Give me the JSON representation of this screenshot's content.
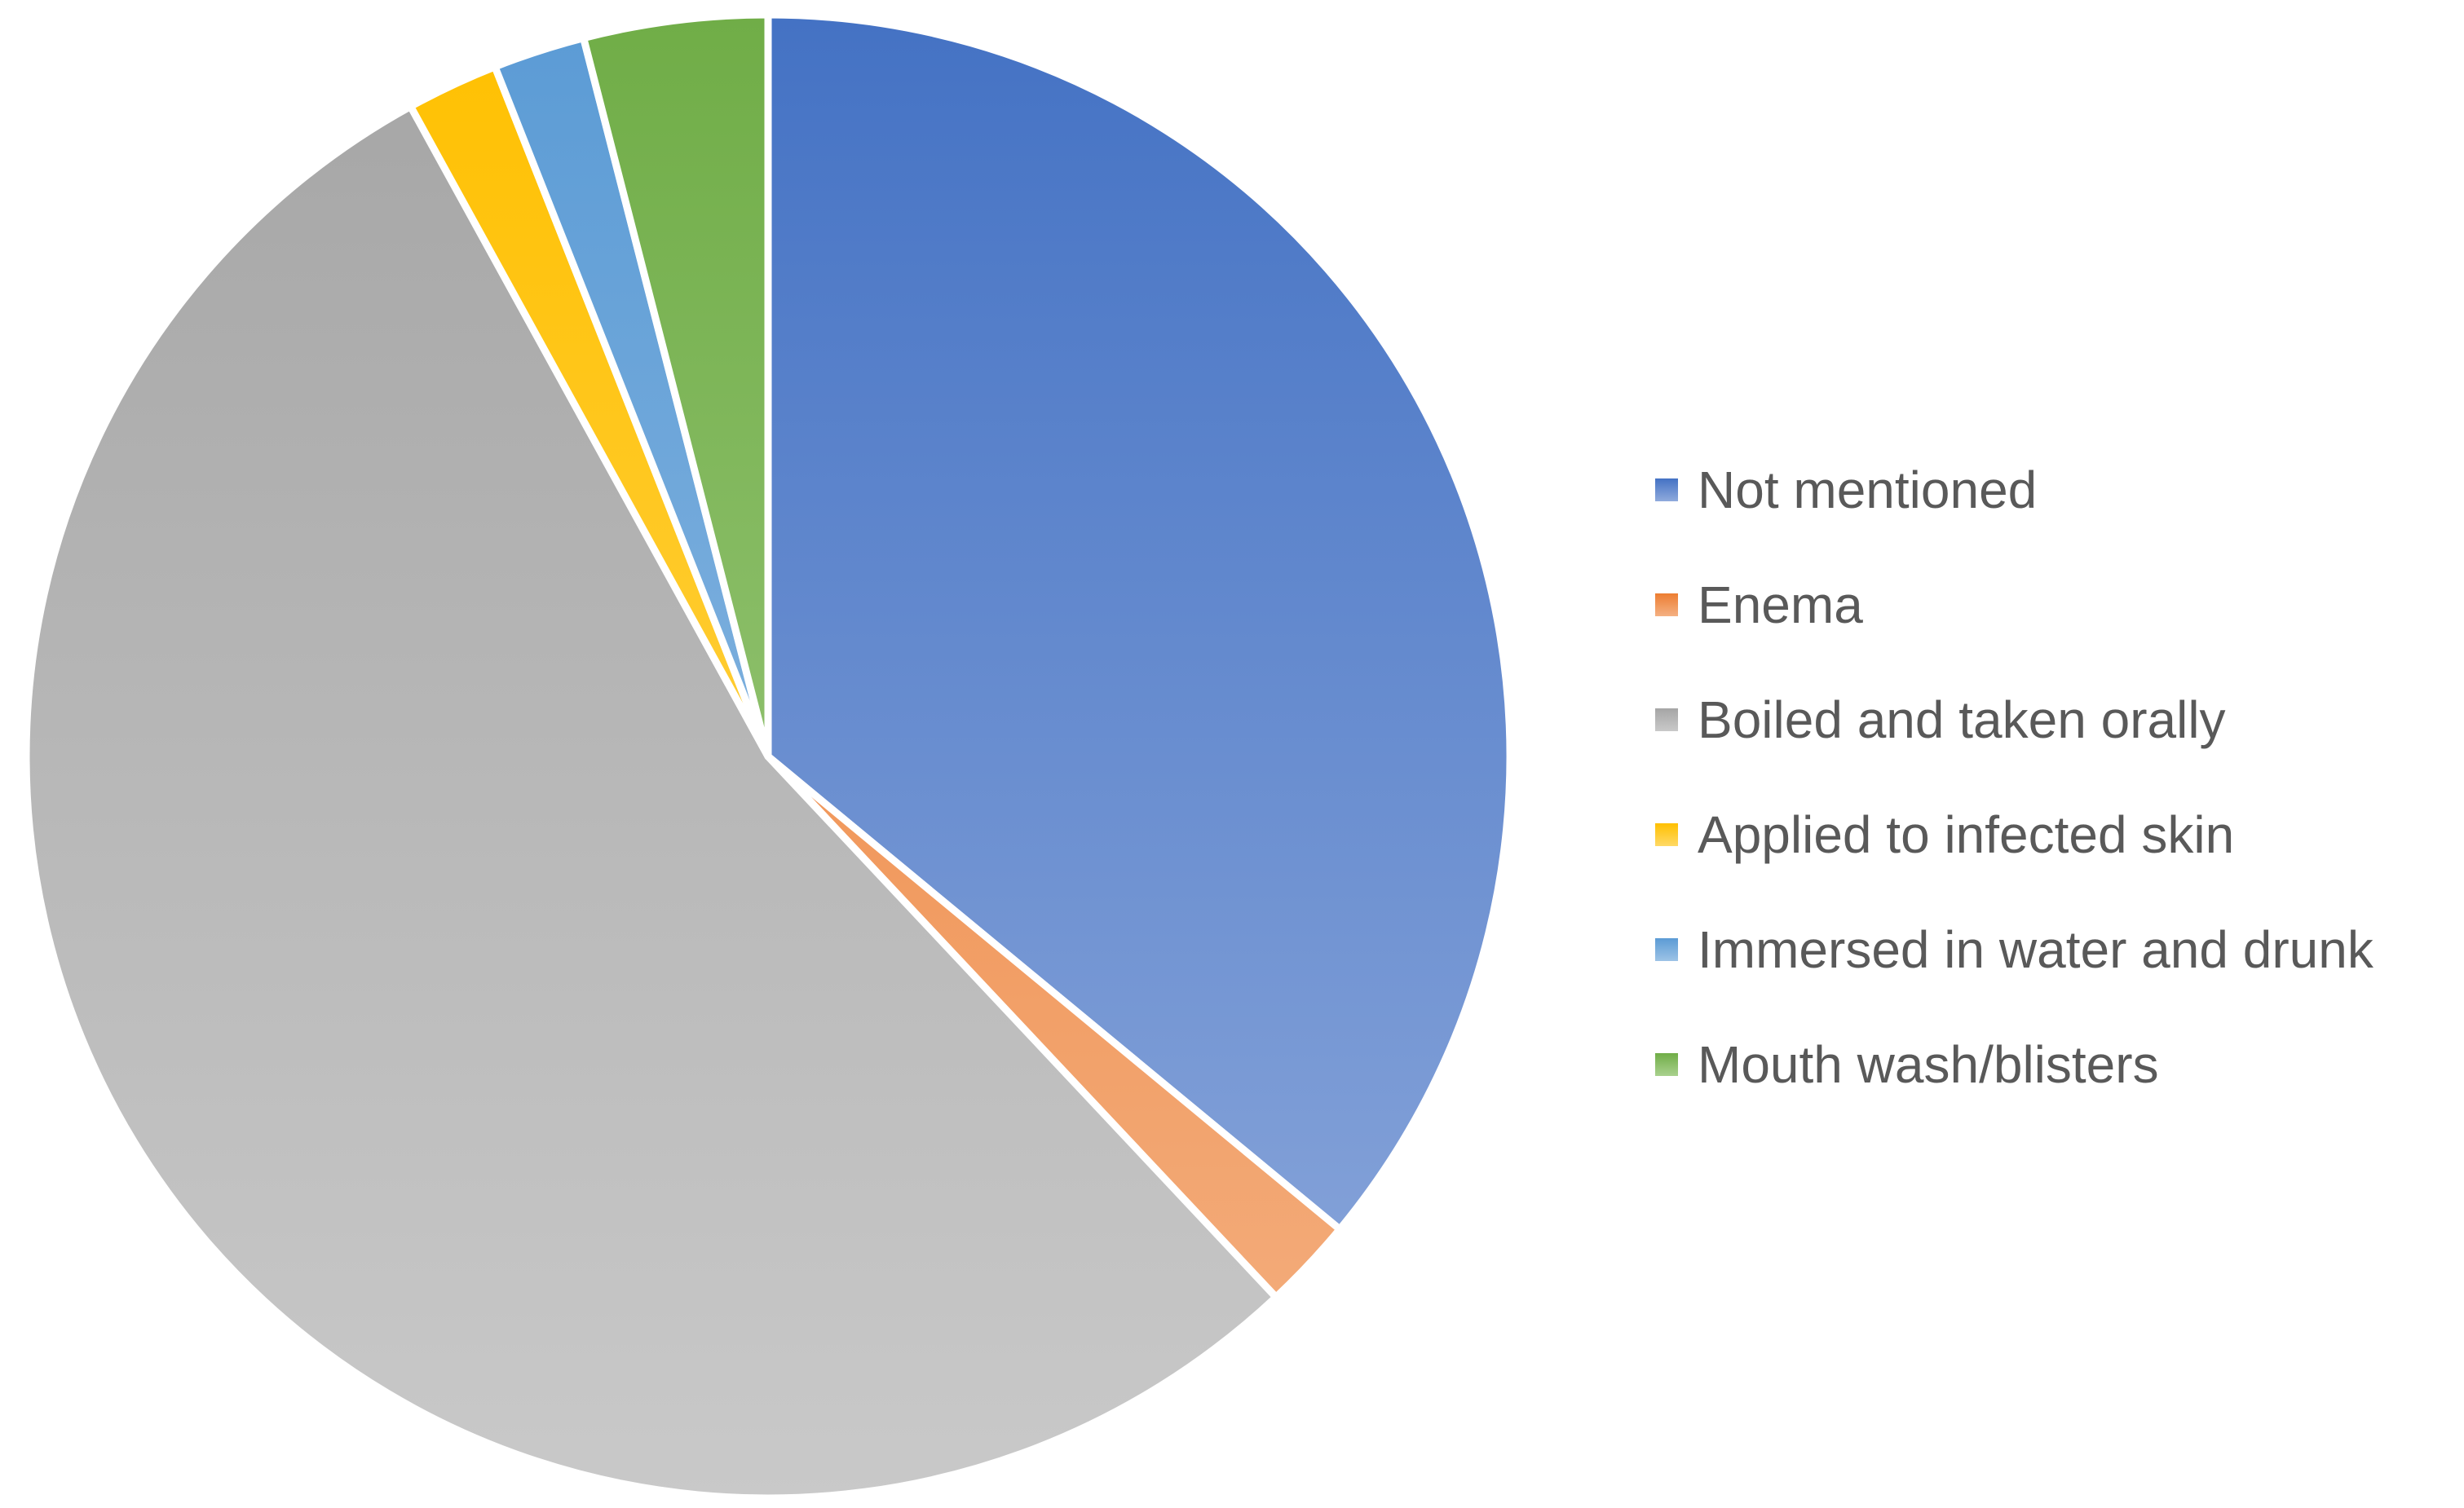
{
  "chart_data": {
    "type": "pie",
    "title": "",
    "legend_position": "right",
    "slices": [
      {
        "label": "Not mentioned",
        "value": 36,
        "color_top": "#4472c4",
        "color_bottom": "#8faadc"
      },
      {
        "label": "Enema",
        "value": 2,
        "color_top": "#ed7d31",
        "color_bottom": "#f4b183"
      },
      {
        "label": "Boiled and taken orally",
        "value": 54,
        "color_top": "#a5a5a5",
        "color_bottom": "#c9c9c9"
      },
      {
        "label": "Applied to infected skin",
        "value": 2,
        "color_top": "#ffc000",
        "color_bottom": "#ffd966"
      },
      {
        "label": "Immersed in water and drunk",
        "value": 2,
        "color_top": "#5b9bd5",
        "color_bottom": "#9dc3e6"
      },
      {
        "label": "Mouth wash/blisters",
        "value": 4,
        "color_top": "#70ad47",
        "color_bottom": "#a9d18e"
      }
    ]
  }
}
